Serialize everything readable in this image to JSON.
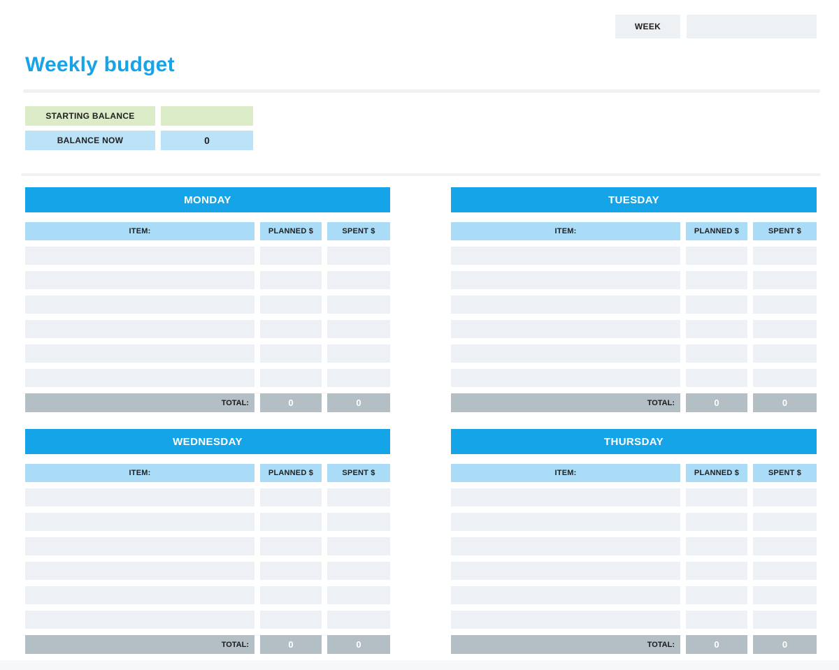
{
  "header": {
    "week_label": "WEEK",
    "week_value": ""
  },
  "page": {
    "title": "Weekly budget"
  },
  "balance": {
    "starting_label": "STARTING BALANCE",
    "starting_value": "",
    "now_label": "BALANCE NOW",
    "now_value": "0"
  },
  "columns": {
    "item": "ITEM:",
    "planned": "PLANNED $",
    "spent": "SPENT $"
  },
  "total_label": "TOTAL:",
  "days": [
    {
      "name": "MONDAY",
      "rows": [
        {
          "item": "",
          "planned": "",
          "spent": ""
        },
        {
          "item": "",
          "planned": "",
          "spent": ""
        },
        {
          "item": "",
          "planned": "",
          "spent": ""
        },
        {
          "item": "",
          "planned": "",
          "spent": ""
        },
        {
          "item": "",
          "planned": "",
          "spent": ""
        },
        {
          "item": "",
          "planned": "",
          "spent": ""
        }
      ],
      "total_planned": "0",
      "total_spent": "0"
    },
    {
      "name": "TUESDAY",
      "rows": [
        {
          "item": "",
          "planned": "",
          "spent": ""
        },
        {
          "item": "",
          "planned": "",
          "spent": ""
        },
        {
          "item": "",
          "planned": "",
          "spent": ""
        },
        {
          "item": "",
          "planned": "",
          "spent": ""
        },
        {
          "item": "",
          "planned": "",
          "spent": ""
        },
        {
          "item": "",
          "planned": "",
          "spent": ""
        }
      ],
      "total_planned": "0",
      "total_spent": "0"
    },
    {
      "name": "WEDNESDAY",
      "rows": [
        {
          "item": "",
          "planned": "",
          "spent": ""
        },
        {
          "item": "",
          "planned": "",
          "spent": ""
        },
        {
          "item": "",
          "planned": "",
          "spent": ""
        },
        {
          "item": "",
          "planned": "",
          "spent": ""
        },
        {
          "item": "",
          "planned": "",
          "spent": ""
        },
        {
          "item": "",
          "planned": "",
          "spent": ""
        }
      ],
      "total_planned": "0",
      "total_spent": "0"
    },
    {
      "name": "THURSDAY",
      "rows": [
        {
          "item": "",
          "planned": "",
          "spent": ""
        },
        {
          "item": "",
          "planned": "",
          "spent": ""
        },
        {
          "item": "",
          "planned": "",
          "spent": ""
        },
        {
          "item": "",
          "planned": "",
          "spent": ""
        },
        {
          "item": "",
          "planned": "",
          "spent": ""
        },
        {
          "item": "",
          "planned": "",
          "spent": ""
        }
      ],
      "total_planned": "0",
      "total_spent": "0"
    }
  ],
  "colors": {
    "accent_blue": "#16a4e8",
    "column_header_blue": "#aadcf7",
    "balance_now_blue": "#bce2f8",
    "starting_balance_green": "#dcebc8",
    "empty_row_gray": "#edf1f5",
    "total_row_gray": "#b3bec5",
    "week_box_gray": "#edf1f4"
  }
}
